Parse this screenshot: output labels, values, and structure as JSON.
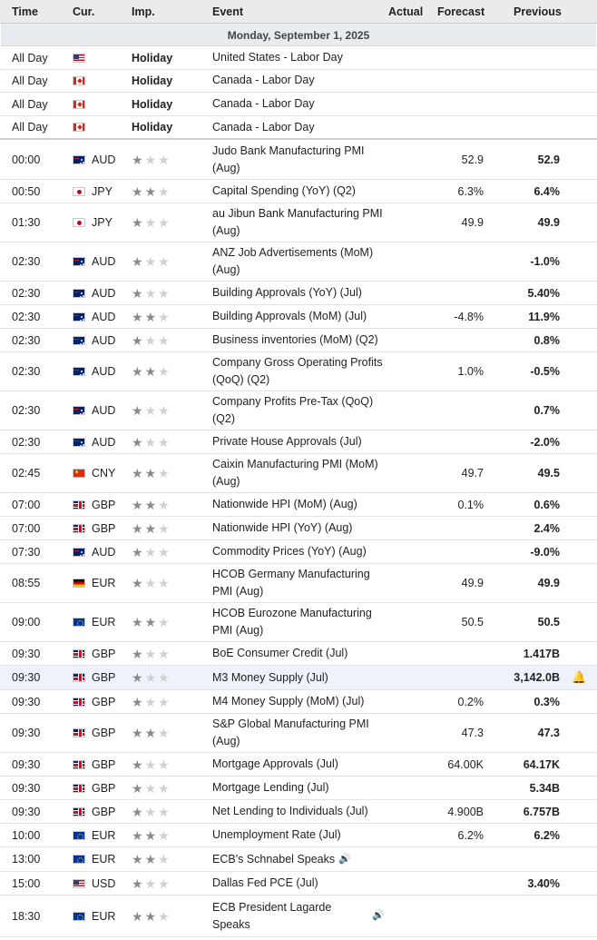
{
  "header": {
    "time": "Time",
    "currency": "Cur.",
    "importance": "Imp.",
    "event": "Event",
    "actual": "Actual",
    "forecast": "Forecast",
    "previous": "Previous"
  },
  "date_label": "Monday, September 1, 2025",
  "holidays": [
    {
      "time": "All Day",
      "flag": "us",
      "label": "Holiday",
      "event": "United States - Labor Day"
    },
    {
      "time": "All Day",
      "flag": "ca",
      "label": "Holiday",
      "event": "Canada - Labor Day"
    },
    {
      "time": "All Day",
      "flag": "ca",
      "label": "Holiday",
      "event": "Canada - Labor Day"
    },
    {
      "time": "All Day",
      "flag": "ca",
      "label": "Holiday",
      "event": "Canada - Labor Day"
    }
  ],
  "events": [
    {
      "time": "00:00",
      "flag": "au",
      "cur": "AUD",
      "imp": 1,
      "event": "Judo Bank Manufacturing PMI (Aug)",
      "actual": "",
      "forecast": "52.9",
      "previous": "52.9"
    },
    {
      "time": "00:50",
      "flag": "jp",
      "cur": "JPY",
      "imp": 2,
      "event": "Capital Spending (YoY) (Q2)",
      "actual": "",
      "forecast": "6.3%",
      "previous": "6.4%"
    },
    {
      "time": "01:30",
      "flag": "jp",
      "cur": "JPY",
      "imp": 1,
      "event": "au Jibun Bank Manufacturing PMI (Aug)",
      "actual": "",
      "forecast": "49.9",
      "previous": "49.9"
    },
    {
      "time": "02:30",
      "flag": "au",
      "cur": "AUD",
      "imp": 1,
      "event": "ANZ Job Advertisements (MoM) (Aug)",
      "actual": "",
      "forecast": "",
      "previous": "-1.0%"
    },
    {
      "time": "02:30",
      "flag": "au",
      "cur": "AUD",
      "imp": 1,
      "event": "Building Approvals (YoY) (Jul)",
      "actual": "",
      "forecast": "",
      "previous": "5.40%"
    },
    {
      "time": "02:30",
      "flag": "au",
      "cur": "AUD",
      "imp": 2,
      "event": "Building Approvals (MoM) (Jul)",
      "actual": "",
      "forecast": "-4.8%",
      "previous": "11.9%"
    },
    {
      "time": "02:30",
      "flag": "au",
      "cur": "AUD",
      "imp": 1,
      "event": "Business inventories (MoM) (Q2)",
      "actual": "",
      "forecast": "",
      "previous": "0.8%"
    },
    {
      "time": "02:30",
      "flag": "au",
      "cur": "AUD",
      "imp": 2,
      "event": "Company Gross Operating Profits (QoQ) (Q2)",
      "actual": "",
      "forecast": "1.0%",
      "previous": "-0.5%"
    },
    {
      "time": "02:30",
      "flag": "au",
      "cur": "AUD",
      "imp": 1,
      "event": "Company Profits Pre-Tax (QoQ) (Q2)",
      "actual": "",
      "forecast": "",
      "previous": "0.7%"
    },
    {
      "time": "02:30",
      "flag": "au",
      "cur": "AUD",
      "imp": 1,
      "event": "Private House Approvals (Jul)",
      "actual": "",
      "forecast": "",
      "previous": "-2.0%"
    },
    {
      "time": "02:45",
      "flag": "cn",
      "cur": "CNY",
      "imp": 2,
      "event": "Caixin Manufacturing PMI (MoM) (Aug)",
      "actual": "",
      "forecast": "49.7",
      "previous": "49.5"
    },
    {
      "time": "07:00",
      "flag": "gb",
      "cur": "GBP",
      "imp": 2,
      "event": "Nationwide HPI (MoM) (Aug)",
      "actual": "",
      "forecast": "0.1%",
      "previous": "0.6%"
    },
    {
      "time": "07:00",
      "flag": "gb",
      "cur": "GBP",
      "imp": 2,
      "event": "Nationwide HPI (YoY) (Aug)",
      "actual": "",
      "forecast": "",
      "previous": "2.4%"
    },
    {
      "time": "07:30",
      "flag": "au",
      "cur": "AUD",
      "imp": 1,
      "event": "Commodity Prices (YoY) (Aug)",
      "actual": "",
      "forecast": "",
      "previous": "-9.0%"
    },
    {
      "time": "08:55",
      "flag": "de",
      "cur": "EUR",
      "imp": 1,
      "event": "HCOB Germany Manufacturing PMI (Aug)",
      "actual": "",
      "forecast": "49.9",
      "previous": "49.9"
    },
    {
      "time": "09:00",
      "flag": "eu",
      "cur": "EUR",
      "imp": 2,
      "event": "HCOB Eurozone Manufacturing PMI (Aug)",
      "actual": "",
      "forecast": "50.5",
      "previous": "50.5"
    },
    {
      "time": "09:30",
      "flag": "gb",
      "cur": "GBP",
      "imp": 1,
      "event": "BoE Consumer Credit (Jul)",
      "actual": "",
      "forecast": "",
      "previous": "1.417B"
    },
    {
      "time": "09:30",
      "flag": "gb",
      "cur": "GBP",
      "imp": 1,
      "event": "M3 Money Supply (Jul)",
      "actual": "",
      "forecast": "",
      "previous": "3,142.0B",
      "highlight": true
    },
    {
      "time": "09:30",
      "flag": "gb",
      "cur": "GBP",
      "imp": 1,
      "event": "M4 Money Supply (MoM) (Jul)",
      "actual": "",
      "forecast": "0.2%",
      "previous": "0.3%"
    },
    {
      "time": "09:30",
      "flag": "gb",
      "cur": "GBP",
      "imp": 2,
      "event": "S&P Global Manufacturing PMI (Aug)",
      "actual": "",
      "forecast": "47.3",
      "previous": "47.3"
    },
    {
      "time": "09:30",
      "flag": "gb",
      "cur": "GBP",
      "imp": 1,
      "event": "Mortgage Approvals (Jul)",
      "actual": "",
      "forecast": "64.00K",
      "previous": "64.17K"
    },
    {
      "time": "09:30",
      "flag": "gb",
      "cur": "GBP",
      "imp": 1,
      "event": "Mortgage Lending (Jul)",
      "actual": "",
      "forecast": "",
      "previous": "5.34B"
    },
    {
      "time": "09:30",
      "flag": "gb",
      "cur": "GBP",
      "imp": 1,
      "event": "Net Lending to Individuals (Jul)",
      "actual": "",
      "forecast": "4.900B",
      "previous": "6.757B"
    },
    {
      "time": "10:00",
      "flag": "eu",
      "cur": "EUR",
      "imp": 2,
      "event": "Unemployment Rate (Jul)",
      "actual": "",
      "forecast": "6.2%",
      "previous": "6.2%"
    },
    {
      "time": "13:00",
      "flag": "eu",
      "cur": "EUR",
      "imp": 2,
      "event": "ECB's Schnabel Speaks",
      "actual": "",
      "forecast": "",
      "previous": "",
      "speech": true
    },
    {
      "time": "15:00",
      "flag": "us",
      "cur": "USD",
      "imp": 1,
      "event": "Dallas Fed PCE (Jul)",
      "actual": "",
      "forecast": "",
      "previous": "3.40%"
    },
    {
      "time": "18:30",
      "flag": "eu",
      "cur": "EUR",
      "imp": 2,
      "event": "ECB President Lagarde Speaks",
      "actual": "",
      "forecast": "",
      "previous": "",
      "speech": true
    }
  ],
  "icons": {
    "speaker": "speaker-icon",
    "bell": "bell-plus-icon"
  }
}
